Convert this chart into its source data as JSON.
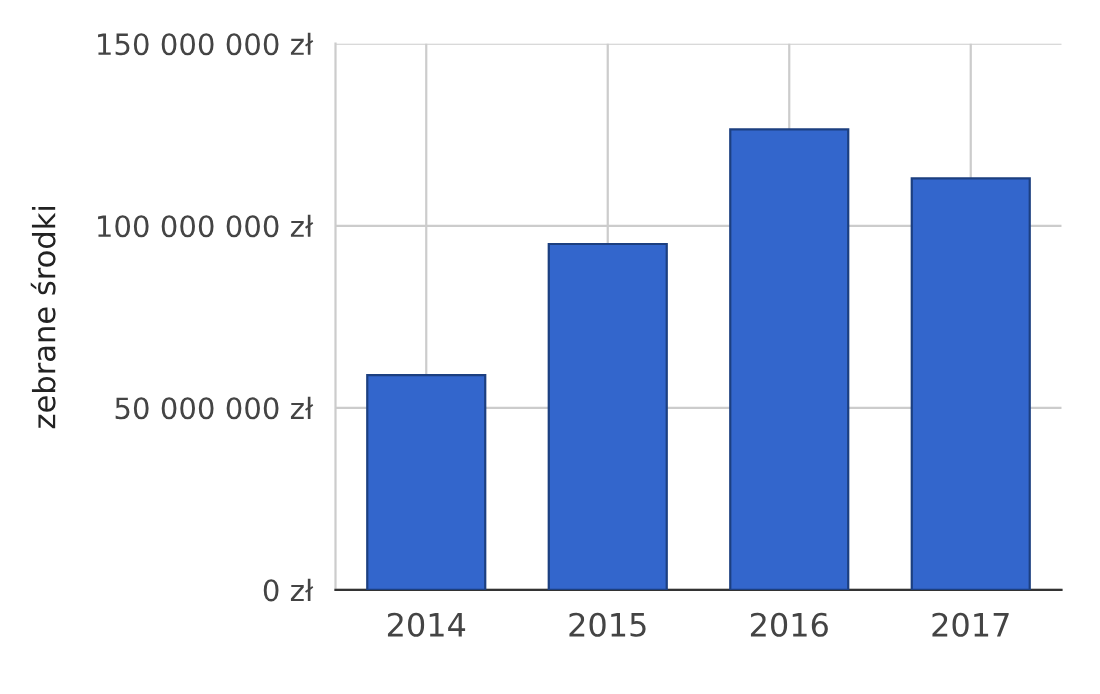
{
  "chart_data": {
    "type": "bar",
    "ylabel": "zebrane środki",
    "categories": [
      "2014",
      "2015",
      "2016",
      "2017"
    ],
    "values": [
      59000000,
      95000000,
      126500000,
      113000000
    ],
    "color": "#3366cc",
    "ylim": [
      0,
      150000000
    ],
    "yticks": [
      {
        "value": 0,
        "label": "0 zł"
      },
      {
        "value": 50000000,
        "label": "50 000 000 zł"
      },
      {
        "value": 100000000,
        "label": "100 000 000 zł"
      },
      {
        "value": 150000000,
        "label": "150 000 000 zł"
      }
    ],
    "grid": true,
    "legend": false
  }
}
